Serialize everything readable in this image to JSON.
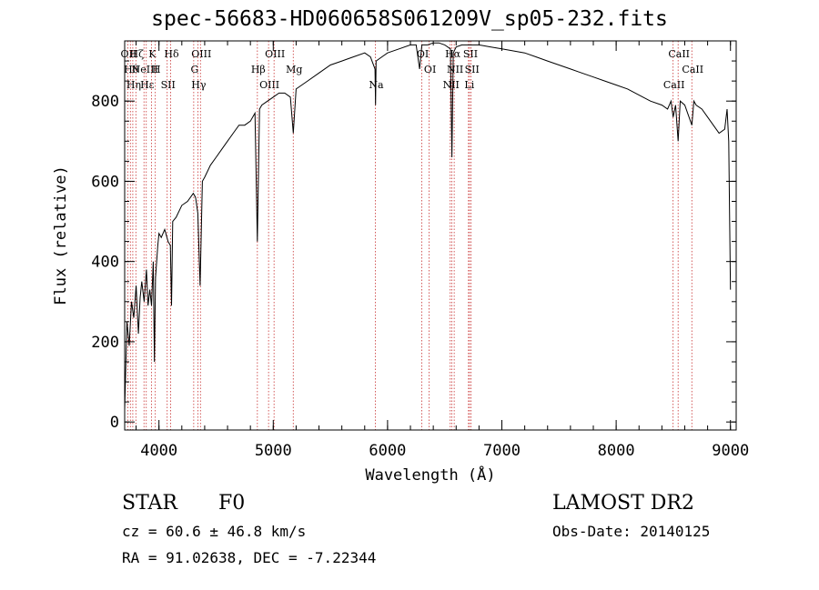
{
  "chart_data": {
    "type": "line",
    "title": "spec-56683-HD060658S061209V_sp05-232.fits",
    "xlabel": "Wavelength (Å)",
    "ylabel": "Flux (relative)",
    "xlim": [
      3700,
      9050
    ],
    "ylim": [
      -20,
      950
    ],
    "x_ticks": [
      4000,
      5000,
      6000,
      7000,
      8000,
      9000
    ],
    "y_ticks": [
      0,
      200,
      400,
      600,
      800
    ],
    "grid": false,
    "series": [
      {
        "x": [
          3700,
          3720,
          3740,
          3760,
          3780,
          3800,
          3820,
          3835,
          3850,
          3870,
          3890,
          3905,
          3920,
          3935,
          3950,
          3960,
          3970,
          3990,
          4000,
          4020,
          4050,
          4080,
          4100,
          4110,
          4120,
          4150,
          4200,
          4250,
          4300,
          4320,
          4340,
          4360,
          4380,
          4400,
          4450,
          4500,
          4550,
          4600,
          4650,
          4700,
          4750,
          4800,
          4840,
          4861,
          4880,
          4900,
          4950,
          5000,
          5050,
          5100,
          5150,
          5175,
          5200,
          5250,
          5300,
          5400,
          5500,
          5600,
          5700,
          5800,
          5850,
          5890,
          5895,
          5900,
          5950,
          6000,
          6100,
          6200,
          6250,
          6280,
          6300,
          6350,
          6400,
          6450,
          6500,
          6550,
          6563,
          6575,
          6600,
          6650,
          6700,
          6800,
          6900,
          7000,
          7100,
          7200,
          7300,
          7400,
          7500,
          7600,
          7700,
          7800,
          7900,
          8000,
          8100,
          8200,
          8300,
          8400,
          8450,
          8480,
          8498,
          8520,
          8542,
          8560,
          8600,
          8662,
          8680,
          8700,
          8750,
          8800,
          8850,
          8900,
          8950,
          8970,
          8985,
          9000
        ],
        "y": [
          30,
          250,
          190,
          300,
          260,
          340,
          220,
          310,
          350,
          300,
          380,
          290,
          330,
          290,
          400,
          150,
          360,
          440,
          470,
          460,
          480,
          450,
          440,
          290,
          500,
          510,
          540,
          550,
          570,
          560,
          520,
          340,
          600,
          610,
          640,
          660,
          680,
          700,
          720,
          740,
          740,
          750,
          770,
          450,
          780,
          790,
          800,
          810,
          820,
          820,
          810,
          720,
          830,
          840,
          850,
          870,
          890,
          900,
          910,
          920,
          910,
          880,
          790,
          900,
          910,
          920,
          930,
          940,
          940,
          880,
          940,
          940,
          945,
          945,
          940,
          930,
          660,
          920,
          935,
          940,
          940,
          940,
          935,
          930,
          925,
          920,
          910,
          900,
          890,
          880,
          870,
          860,
          850,
          840,
          830,
          815,
          800,
          790,
          780,
          800,
          760,
          790,
          700,
          800,
          790,
          740,
          800,
          790,
          780,
          760,
          740,
          720,
          730,
          780,
          700,
          330
        ],
        "name": ""
      }
    ],
    "line_markers": [
      {
        "x": 3727,
        "text": "OII"
      },
      {
        "x": 3750,
        "text": "Hθ"
      },
      {
        "x": 3771,
        "text": "Hη"
      },
      {
        "x": 3798,
        "text": "Hζ"
      },
      {
        "x": 3869,
        "text": "NeIII"
      },
      {
        "x": 3889,
        "text": "Hε"
      },
      {
        "x": 3934,
        "text": "K"
      },
      {
        "x": 3968,
        "text": "H"
      },
      {
        "x": 4072,
        "text": "SII"
      },
      {
        "x": 4102,
        "text": "Hδ"
      },
      {
        "x": 4304,
        "text": "G"
      },
      {
        "x": 4340,
        "text": "Hγ"
      },
      {
        "x": 4363,
        "text": "OIII"
      },
      {
        "x": 4861,
        "text": "Hβ"
      },
      {
        "x": 4959,
        "text": "OIII"
      },
      {
        "x": 5007,
        "text": "OIII"
      },
      {
        "x": 5175,
        "text": "Mg"
      },
      {
        "x": 5893,
        "text": "Na"
      },
      {
        "x": 6300,
        "text": "OI"
      },
      {
        "x": 6364,
        "text": "OI"
      },
      {
        "x": 6548,
        "text": "NII"
      },
      {
        "x": 6563,
        "text": "Hα"
      },
      {
        "x": 6583,
        "text": "NII"
      },
      {
        "x": 6708,
        "text": "Li"
      },
      {
        "x": 6717,
        "text": "SII"
      },
      {
        "x": 6731,
        "text": "SII"
      },
      {
        "x": 8498,
        "text": "CaII"
      },
      {
        "x": 8542,
        "text": "CaII"
      },
      {
        "x": 8662,
        "text": "CaII"
      }
    ]
  },
  "footer": {
    "object_type": "STAR",
    "subclass": "F0",
    "cz": "cz = 60.6 ± 46.8 km/s",
    "coords": "RA =  91.02638, DEC =  -7.22344",
    "survey": "LAMOST DR2",
    "obs_date": "Obs-Date: 20140125"
  },
  "colors": {
    "line": "#000000",
    "marker": "#c83232",
    "background": "#ffffff"
  }
}
